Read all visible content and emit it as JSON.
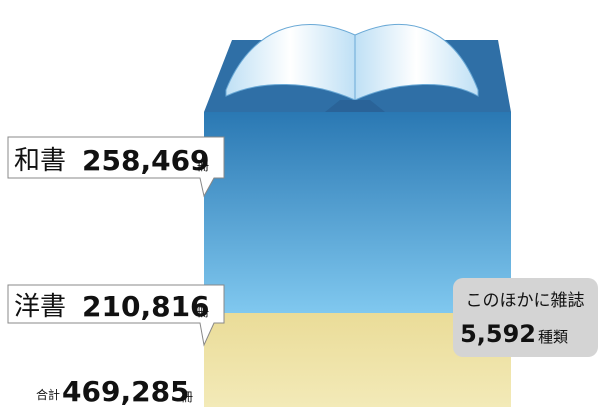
{
  "items": [
    {
      "name": "和書",
      "count": "258,469",
      "unit": "冊"
    },
    {
      "name": "洋書",
      "count": "210,816",
      "unit": "冊"
    }
  ],
  "total": {
    "label": "合計",
    "count": "469,285",
    "unit": "冊"
  },
  "note": {
    "text": "このほかに雑誌",
    "count": "5,592",
    "unit": "種類"
  }
}
